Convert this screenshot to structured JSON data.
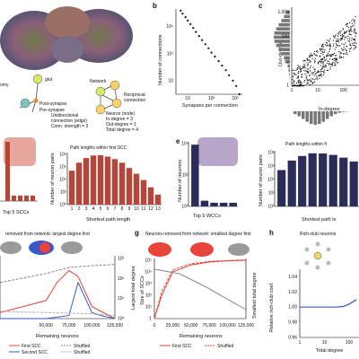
{
  "panel_letters": {
    "b": "b",
    "c": "c",
    "e": "e",
    "g": "g",
    "h": "h"
  },
  "colors": {
    "red": "#b5473a",
    "navy": "#2b2c5a",
    "purple_bg": "#b7a6c9",
    "salmon_bg": "#e8a79b",
    "grey": "#9a9a9a",
    "line_red": "#e8443a",
    "line_blue": "#3a56c8",
    "line_grey": "#888888"
  },
  "text": {
    "schematic_glut": "glut",
    "schematic_omy": "omy",
    "post_synapse": "Post-synapse",
    "pre_synapse": "Pre-synapse",
    "network_title": "Network",
    "reciprocal": "Reciprocal",
    "connection": "connection",
    "unidirectional_1": "Unidirectional",
    "unidirectional_2": "connection (edge)",
    "unidirectional_3": "Conn. strength = 3",
    "neuron_node": "Neuron (node)",
    "in_degree": "In-degree = 3",
    "out_degree": "Out-degree = 1",
    "total_degree": "Total degree = 4",
    "top5_sccs": "Top 5 SCCs",
    "top5_wccs": "Top 5 WCCs",
    "f_removed_title": "removed from network: largest degree first",
    "g_removed_title": "Neurons removed from network: smallest degree first",
    "rich_club": "Rich-club neurons",
    "remaining_neurons": "Remaining neurons",
    "size_of_sccs": "Size of SCCs",
    "largest_total_degree": "Largest total degree",
    "smallest_total_degree": "Smallest total degree",
    "relative_rich_club": "Relative rich-club coef.",
    "total_degree_x": "Total degree",
    "in_degree_x": "In-degree",
    "out_degree_y": "Out-degree",
    "legend_first_scc": "First SCC",
    "legend_second_scc": "Second SCC",
    "legend_shuffled": "Shuffled",
    "legend_shuffled2": "Shuffled",
    "legend_first_scc_g": "First SCC",
    "path_first_scc_title": "Path lengths within first SCC",
    "path_first_title_right": "Path lengths within fi",
    "shortest_path_right": "Shortest path le"
  },
  "chart_data": [
    {
      "id": "b",
      "type": "scatter",
      "title": "",
      "xlabel": "Synapses per connection",
      "ylabel": "Number of connections",
      "xscale": "log",
      "yscale": "log",
      "xticks": [
        "10",
        "10²",
        "10³"
      ],
      "yticks": [
        "10",
        "10³",
        "10⁵"
      ],
      "x": [
        5,
        6,
        8,
        10,
        13,
        17,
        22,
        30,
        40,
        55,
        75,
        100,
        140,
        200,
        280,
        400,
        550,
        800,
        1100,
        1500
      ],
      "y": [
        1500000,
        900000,
        500000,
        280000,
        150000,
        80000,
        40000,
        20000,
        10000,
        5000,
        2500,
        1200,
        600,
        280,
        130,
        60,
        25,
        10,
        4,
        1
      ]
    },
    {
      "id": "c",
      "type": "scatter",
      "title": "",
      "xlabel": "In-degree",
      "ylabel": "Out-degree",
      "xscale": "log",
      "yscale": "log",
      "xticks": [
        "1",
        "10",
        "100"
      ],
      "yticks": [
        "1",
        "10",
        "100",
        "1,000"
      ]
    },
    {
      "id": "d",
      "type": "bar",
      "title": "Path lengths within first SCC",
      "xlabel": "Shortest path length",
      "ylabel": "Number of neuron pairs",
      "yscale": "log",
      "yticks": [
        "10⁰",
        "10²",
        "10⁴",
        "10⁶",
        "10⁸"
      ],
      "categories": [
        "1",
        "2",
        "3",
        "4",
        "5",
        "6",
        "7",
        "8",
        "9",
        "10",
        "11",
        "12",
        "13"
      ],
      "values": [
        3000000,
        100000000,
        800000000,
        2500000000,
        2800000000,
        1500000000,
        500000000,
        100000000,
        10000000,
        800000,
        50000,
        2000,
        80
      ]
    },
    {
      "id": "d_left",
      "type": "bar",
      "title": "",
      "xlabel": "Top 5 SCCs",
      "values": [
        100000,
        3,
        3,
        3,
        3
      ]
    },
    {
      "id": "e",
      "type": "bar",
      "title": "",
      "xlabel": "Top 5 WCCs",
      "ylabel": "Number of neurons",
      "yscale": "log",
      "yticks": [
        "10⁰",
        "10²",
        "10⁴"
      ],
      "values": [
        130000,
        3,
        2,
        2,
        2
      ]
    },
    {
      "id": "e_right",
      "type": "bar",
      "title": "Path lengths within fi",
      "xlabel": "Shortest path le",
      "ylabel": "Number of neuron pairs",
      "yscale": "log",
      "yticks": [
        "10⁰",
        "10²",
        "10⁴",
        "10⁶",
        "10⁸"
      ],
      "values": [
        3000000,
        150000000,
        1000000000,
        3000000000,
        2800000000,
        1500000000,
        500000000,
        100000000
      ]
    },
    {
      "id": "f",
      "type": "line",
      "title": "removed from network: largest degree first",
      "xlabel": "Remaining neurons",
      "ylabel": "Largest total degree",
      "xticks": [
        "50,000",
        "75,000",
        "100,000",
        "125,000"
      ],
      "yticks": [
        "10⁰",
        "10¹",
        "10²",
        "10³"
      ],
      "series": [
        {
          "name": "First SCC",
          "x": [
            0,
            25000,
            50000,
            62000,
            75000,
            85000,
            100000,
            125000
          ],
          "y": [
            0.1,
            0.2,
            0.3,
            0.6,
            0.8,
            0.7,
            0.2,
            0.0
          ]
        },
        {
          "name": "Second SCC",
          "x": [
            0,
            50000,
            75000,
            85000,
            100000,
            110000,
            125000
          ],
          "y": [
            0.0,
            0.0,
            0.05,
            0.6,
            0.1,
            0.05,
            0.0
          ]
        },
        {
          "name": "Shuffled",
          "x": [
            0,
            50000,
            75000,
            100000,
            125000
          ],
          "y": [
            0.6,
            0.75,
            0.85,
            0.88,
            0.9
          ]
        },
        {
          "name": "Shuffled",
          "x": [
            0,
            50000,
            100000,
            125000
          ],
          "y": [
            0.12,
            0.1,
            0.08,
            0.05
          ]
        }
      ]
    },
    {
      "id": "g",
      "type": "line",
      "title": "Neurons removed from network: smallest degree first",
      "xlabel": "Remaining neurons",
      "ylabel": "Size of SCCs",
      "xticks": [
        "0",
        "25,000",
        "50,000",
        "75,000",
        "100,000",
        "125,000"
      ],
      "yticks": [
        "1",
        "10¹",
        "10²",
        "10³",
        "10⁴",
        "10⁵"
      ],
      "y2label": "Smallest total degree",
      "series": [
        {
          "name": "First SCC",
          "x": [
            0,
            10000,
            25000,
            50000,
            75000,
            100000,
            125000
          ],
          "y": [
            1,
            100,
            10000,
            40000,
            70000,
            90000,
            100000
          ]
        },
        {
          "name": "Shuffled",
          "x": [
            0,
            10000,
            25000,
            50000,
            75000,
            100000,
            125000
          ],
          "y": [
            1,
            200,
            15000,
            50000,
            80000,
            95000,
            110000
          ]
        }
      ]
    },
    {
      "id": "h",
      "type": "line",
      "title": "Rich-club neurons",
      "xlabel": "Total degree",
      "ylabel": "Relative rich-club coef.",
      "xscale": "log",
      "xticks": [
        "1",
        "10",
        "100"
      ],
      "yticks": [
        "0.96",
        "0.98",
        "1.00",
        "1.02",
        "1.04"
      ],
      "ylim": [
        0.96,
        1.05
      ],
      "series": [
        {
          "name": "",
          "x": [
            1,
            3,
            10,
            30,
            60,
            100,
            200
          ],
          "y": [
            1.0,
            1.0,
            1.0,
            1.0,
            1.001,
            1.004,
            1.01
          ]
        }
      ]
    }
  ]
}
